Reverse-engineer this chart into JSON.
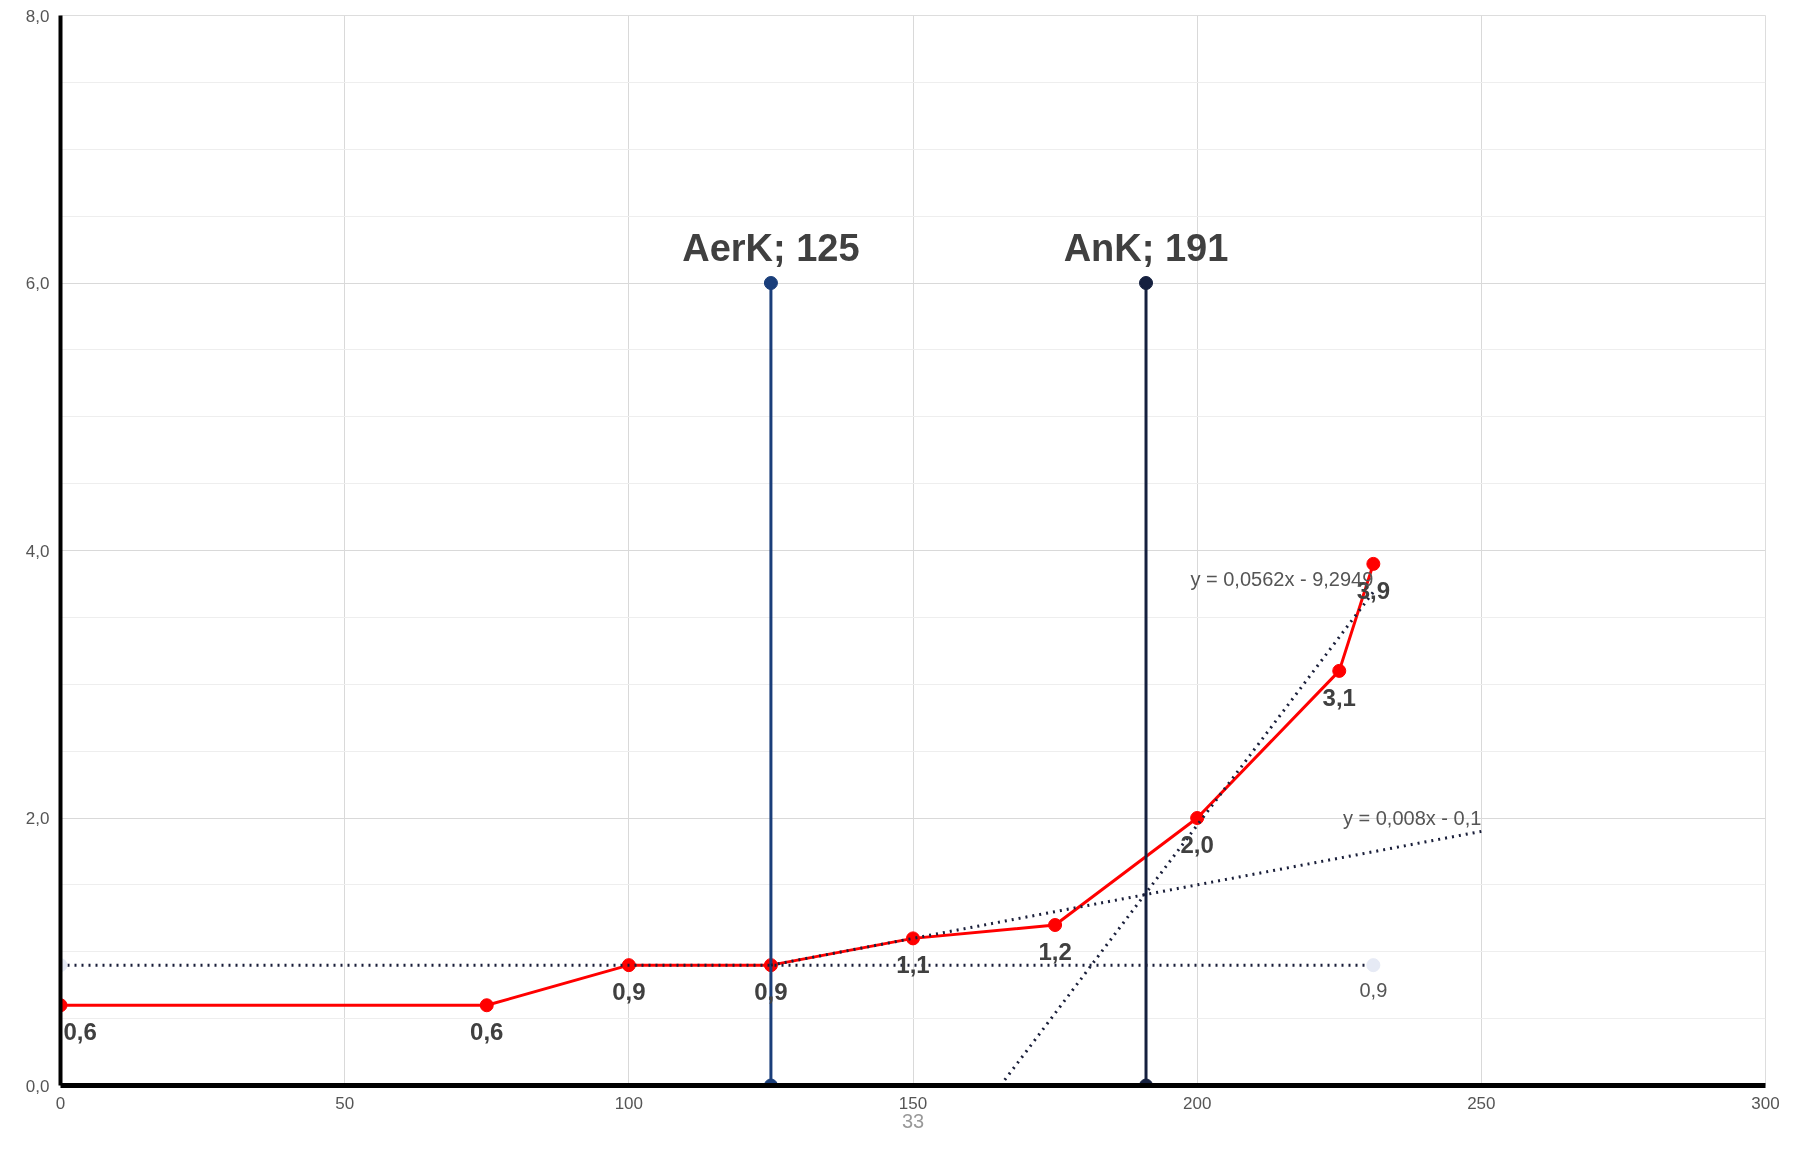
{
  "chart_data": {
    "type": "line",
    "xlim": [
      0,
      300
    ],
    "ylim": [
      0,
      8
    ],
    "xticks": [
      0,
      50,
      100,
      150,
      200,
      250,
      300
    ],
    "yticks": [
      {
        "value": 0,
        "label": "0,0"
      },
      {
        "value": 2,
        "label": "2,0"
      },
      {
        "value": 4,
        "label": "4,0"
      },
      {
        "value": 6,
        "label": "6,0"
      },
      {
        "value": 8,
        "label": "8,0"
      }
    ],
    "grid": true,
    "series": [
      {
        "color": "#ff0000",
        "line_style": "solid",
        "marker": "circle",
        "x": [
          0,
          75,
          100,
          125,
          150,
          175,
          200,
          225,
          231
        ],
        "values": [
          0.6,
          0.6,
          0.9,
          0.9,
          1.1,
          1.2,
          2.0,
          3.1,
          3.9
        ],
        "value_labels": [
          "0,6",
          "0,6",
          "0,9",
          "0,9",
          "1,1",
          "1,2",
          "2,0",
          "3,1",
          "3,9"
        ]
      },
      {
        "color": "#1a3e7a",
        "line_style": "solid",
        "marker": "circle",
        "x": [
          125,
          125
        ],
        "values": [
          0,
          6
        ]
      },
      {
        "color": "#15203f",
        "line_style": "solid",
        "marker": "circle",
        "x": [
          191,
          191
        ],
        "values": [
          0,
          6
        ]
      },
      {
        "color": "#1a1f3a",
        "colors": [
          "#e6eaf5",
          "#e6eaf5"
        ],
        "line_style": "dotted",
        "marker": "circle",
        "x": [
          0,
          231
        ],
        "values": [
          0.9,
          0.9
        ],
        "value_labels": [
          null,
          "0,9"
        ]
      },
      {
        "color": "#1a1f3a",
        "line_style": "dotted",
        "marker": "none",
        "x": [
          125,
          250
        ],
        "values": [
          0.9,
          1.9
        ]
      },
      {
        "color": "#1a1f3a",
        "line_style": "dotted",
        "marker": "none",
        "x": [
          165.4,
          231
        ],
        "values": [
          0,
          3.69
        ]
      }
    ],
    "annotations": [
      {
        "text": "AerK; 125",
        "x": 125,
        "y": 6
      },
      {
        "text": "AnK; 191",
        "x": 191,
        "y": 6
      },
      {
        "text": "y = 0,0562x - 9,2949",
        "x": 231,
        "y": 3.69
      },
      {
        "text": "y = 0,008x - 0,1",
        "x": 250,
        "y": 1.9
      }
    ],
    "xlabel": "33"
  }
}
